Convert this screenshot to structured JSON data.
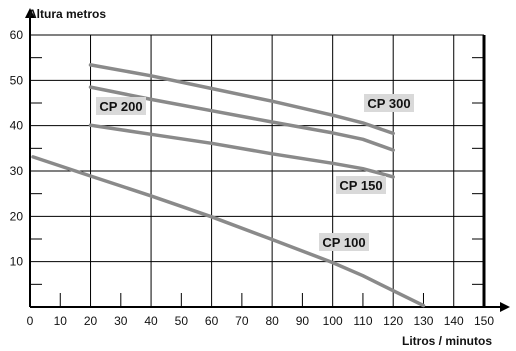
{
  "chart_data": {
    "type": "line",
    "title": "",
    "xlabel": "Litros / minutos",
    "ylabel": "Altura metros",
    "xlim": [
      0,
      150
    ],
    "ylim": [
      0,
      60
    ],
    "x_ticks": [
      0,
      10,
      20,
      30,
      40,
      50,
      60,
      70,
      80,
      90,
      100,
      110,
      120,
      130,
      140,
      150
    ],
    "y_ticks": [
      10,
      20,
      30,
      40,
      50,
      60
    ],
    "grid": true,
    "colors": {
      "axis": "#000000",
      "grid": "#000000",
      "series": "#8a8a8a",
      "label_bg": "#d9d9d9"
    },
    "series": [
      {
        "name": "CP 300",
        "x": [
          20,
          40,
          60,
          80,
          100,
          110,
          120
        ],
        "y": [
          53.4,
          51.0,
          48.2,
          45.4,
          42.3,
          40.6,
          38.3
        ]
      },
      {
        "name": "CP 200",
        "x": [
          20,
          40,
          60,
          80,
          100,
          110,
          120
        ],
        "y": [
          48.5,
          45.8,
          43.3,
          40.8,
          38.4,
          37.0,
          34.6
        ]
      },
      {
        "name": "CP 150",
        "x": [
          20,
          40,
          60,
          80,
          100,
          110,
          120
        ],
        "y": [
          40.1,
          38.1,
          36.1,
          33.8,
          31.7,
          30.5,
          28.7
        ]
      },
      {
        "name": "CP 100",
        "x": [
          1,
          20,
          40,
          60,
          80,
          100,
          110,
          120,
          130
        ],
        "y": [
          33.1,
          28.9,
          24.5,
          19.9,
          14.9,
          9.8,
          6.9,
          3.6,
          0.3
        ]
      }
    ]
  }
}
